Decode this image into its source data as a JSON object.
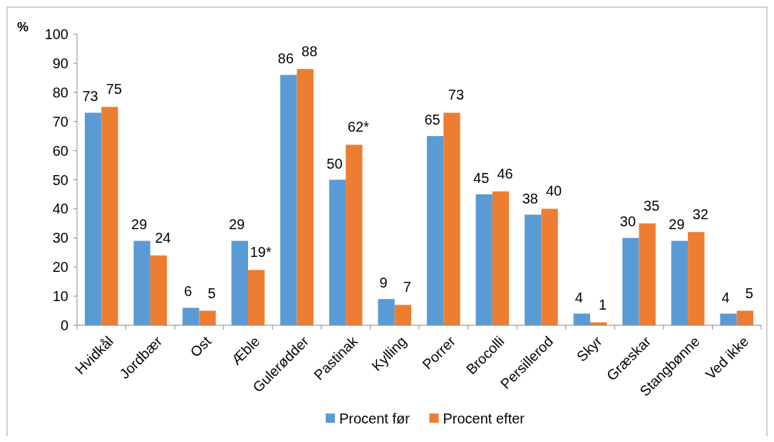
{
  "chart_data": {
    "type": "bar",
    "ylabel": "%",
    "categories": [
      "Hvidkål",
      "Jordbær",
      "Ost",
      "Æble",
      "Gulerødder",
      "Pastinak",
      "Kylling",
      "Porrer",
      "Brocolli",
      "Persillerod",
      "Skyr",
      "Græskar",
      "Stangbønne",
      "Ved ikke"
    ],
    "series": [
      {
        "name": "Procent før",
        "color": "#5b9bd5",
        "values": [
          73,
          29,
          6,
          29,
          86,
          50,
          9,
          65,
          45,
          38,
          4,
          30,
          29,
          4
        ],
        "value_labels": [
          "73",
          "29",
          "6",
          "29",
          "86",
          "50",
          "9",
          "65",
          "45",
          "38",
          "4",
          "30",
          "29",
          "4"
        ]
      },
      {
        "name": "Procent efter",
        "color": "#ed7d31",
        "values": [
          75,
          24,
          5,
          19,
          88,
          62,
          7,
          73,
          46,
          40,
          1,
          35,
          32,
          5
        ],
        "value_labels": [
          "75",
          "24",
          "5",
          "19*",
          "88",
          "62*",
          "7",
          "73",
          "46",
          "40",
          "1",
          "35",
          "32",
          "5"
        ]
      }
    ],
    "ylim": [
      0,
      100
    ],
    "yticks": [
      0,
      10,
      20,
      30,
      40,
      50,
      60,
      70,
      80,
      90,
      100
    ],
    "grid": false,
    "legend": "bottom"
  }
}
